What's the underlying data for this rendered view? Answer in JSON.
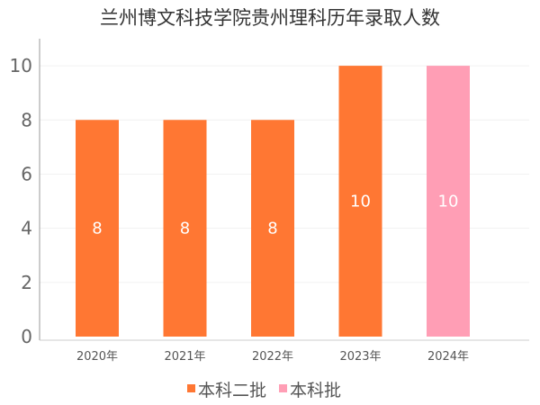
{
  "chart_data": {
    "type": "bar",
    "title": "兰州博文科技学院贵州理科历年录取人数",
    "categories": [
      "2020年",
      "2021年",
      "2022年",
      "2023年",
      "2024年"
    ],
    "values": [
      8,
      8,
      8,
      10,
      10
    ],
    "batches": [
      "本科二批",
      "本科二批",
      "本科二批",
      "本科二批",
      "本科批"
    ],
    "legend": [
      {
        "name": "本科二批",
        "color": "#ff7733"
      },
      {
        "name": "本科批",
        "color": "#ff9eb5"
      }
    ],
    "ylim": [
      0,
      11
    ],
    "yticks": [
      0,
      2,
      4,
      6,
      8,
      10
    ],
    "grid": true,
    "legend_position": "bottom"
  }
}
